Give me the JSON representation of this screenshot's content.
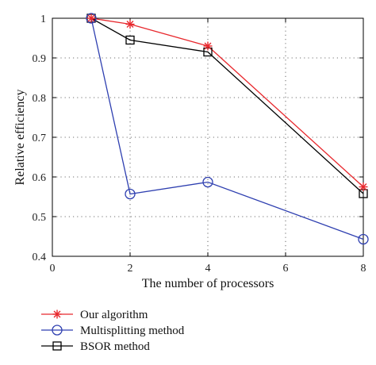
{
  "chart_data": {
    "type": "line",
    "xlabel": "The number of processors",
    "ylabel": "Relative efficiency",
    "xlim": [
      0,
      8
    ],
    "ylim": [
      0.4,
      1
    ],
    "xticks": [
      0,
      2,
      4,
      6,
      8
    ],
    "yticks": [
      0.4,
      0.5,
      0.6,
      0.7,
      0.8,
      0.9,
      1
    ],
    "xtick_labels": [
      "0",
      "2",
      "4",
      "6",
      "8"
    ],
    "ytick_labels": [
      "0.4",
      "0.5",
      "0.6",
      "0.7",
      "0.8",
      "0.9",
      "1"
    ],
    "grid": "dotted",
    "legend_placement": "below",
    "x": [
      1,
      2,
      4,
      8
    ],
    "series": [
      {
        "name": "Our algorithm",
        "color": "#e8282d",
        "marker": "asterisk",
        "values": [
          1.0,
          0.985,
          0.93,
          0.575
        ]
      },
      {
        "name": "Multisplitting method",
        "color": "#2e3fb0",
        "marker": "circle",
        "values": [
          1.0,
          0.557,
          0.587,
          0.443
        ]
      },
      {
        "name": "BSOR method",
        "color": "#000000",
        "marker": "square",
        "values": [
          1.0,
          0.945,
          0.915,
          0.558
        ]
      }
    ]
  }
}
